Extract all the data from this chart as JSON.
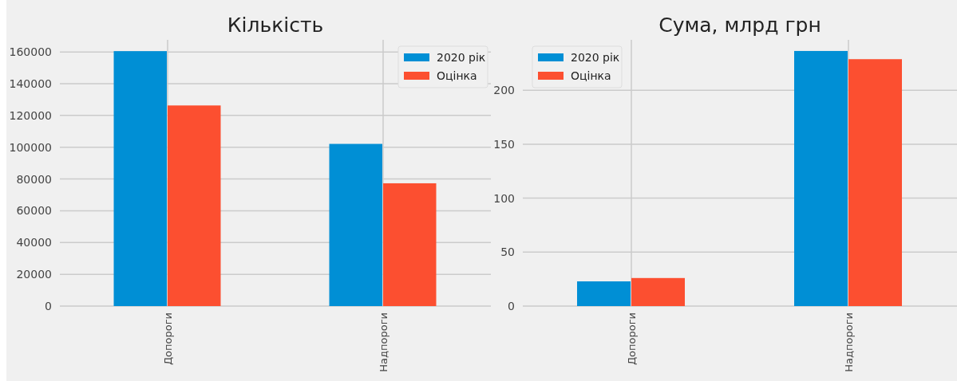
{
  "chart_data": [
    {
      "type": "bar",
      "title": "Кількість",
      "categories": [
        "Допороги",
        "Надпороги"
      ],
      "series": [
        {
          "name": "2020 рік",
          "color": "#008fd5",
          "values": [
            160500,
            102100
          ]
        },
        {
          "name": "Оцінка",
          "color": "#fc4f30",
          "values": [
            126300,
            77300
          ]
        }
      ],
      "ylim": [
        0,
        167600
      ],
      "yticks": [
        0,
        20000,
        40000,
        60000,
        80000,
        100000,
        120000,
        140000,
        160000
      ],
      "grid": true,
      "legend": "top right"
    },
    {
      "type": "bar",
      "title": "Сума, млрд грн",
      "categories": [
        "Допороги",
        "Надпороги"
      ],
      "series": [
        {
          "name": "2020 рік",
          "color": "#008fd5",
          "values": [
            22.9,
            236.4
          ]
        },
        {
          "name": "Оцінка",
          "color": "#fc4f30",
          "values": [
            26.0,
            228.8
          ]
        }
      ],
      "ylim": [
        0,
        246.7
      ],
      "yticks": [
        0,
        50,
        100,
        150,
        200
      ],
      "grid": true,
      "legend": "top left"
    }
  ]
}
